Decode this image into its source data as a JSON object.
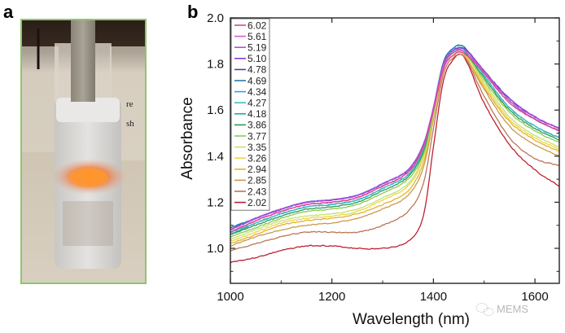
{
  "panels": {
    "a": {
      "label": "a",
      "description": "Glass vial with white powder glowing orange, rod inserted from top"
    },
    "b": {
      "label": "b"
    }
  },
  "watermark": {
    "icon": "wechat-icon",
    "text": "MEMS"
  },
  "chart_data": {
    "type": "line",
    "title": "",
    "xlabel": "Wavelength (nm)",
    "ylabel": "Absorbance",
    "xlim": [
      1000,
      1648
    ],
    "ylim": [
      0.85,
      2.0
    ],
    "xticks": [
      1000,
      1200,
      1400,
      1600
    ],
    "xtick_labels": [
      "1000",
      "1200",
      "1400",
      "1600"
    ],
    "xminor": [
      1100,
      1300,
      1500
    ],
    "yticks": [
      1.0,
      1.2,
      1.4,
      1.6,
      1.8,
      2.0
    ],
    "ytick_labels": [
      "1.0",
      "1.2",
      "1.4",
      "1.6",
      "1.8",
      "2.0"
    ],
    "yminor": [
      0.9,
      1.1,
      1.3,
      1.5,
      1.7,
      1.9
    ],
    "grid": false,
    "legend_position": "top-left",
    "x": [
      1000,
      1050,
      1100,
      1150,
      1200,
      1250,
      1300,
      1350,
      1380,
      1400,
      1420,
      1440,
      1455,
      1470,
      1500,
      1550,
      1600,
      1648
    ],
    "series": [
      {
        "name": "6.02",
        "color": "#e0409a",
        "values": [
          1.07,
          1.12,
          1.16,
          1.19,
          1.2,
          1.22,
          1.27,
          1.33,
          1.44,
          1.6,
          1.78,
          1.84,
          1.85,
          1.83,
          1.76,
          1.63,
          1.56,
          1.51
        ]
      },
      {
        "name": "5.61",
        "color": "#d060c8",
        "values": [
          1.07,
          1.12,
          1.16,
          1.19,
          1.2,
          1.22,
          1.27,
          1.33,
          1.44,
          1.6,
          1.79,
          1.85,
          1.86,
          1.84,
          1.76,
          1.64,
          1.56,
          1.51
        ]
      },
      {
        "name": "5.19",
        "color": "#b050d8",
        "values": [
          1.08,
          1.13,
          1.17,
          1.2,
          1.21,
          1.23,
          1.28,
          1.34,
          1.45,
          1.61,
          1.8,
          1.86,
          1.86,
          1.84,
          1.77,
          1.64,
          1.57,
          1.52
        ]
      },
      {
        "name": "5.10",
        "color": "#8a3ce0",
        "values": [
          1.08,
          1.13,
          1.17,
          1.2,
          1.21,
          1.23,
          1.28,
          1.34,
          1.45,
          1.61,
          1.8,
          1.86,
          1.87,
          1.85,
          1.77,
          1.65,
          1.57,
          1.52
        ]
      },
      {
        "name": "4.78",
        "color": "#5a3aa8",
        "values": [
          1.08,
          1.13,
          1.17,
          1.2,
          1.21,
          1.23,
          1.28,
          1.34,
          1.45,
          1.61,
          1.8,
          1.86,
          1.87,
          1.85,
          1.77,
          1.65,
          1.57,
          1.52
        ]
      },
      {
        "name": "4.69",
        "color": "#2a78a8",
        "values": [
          1.09,
          1.13,
          1.17,
          1.2,
          1.21,
          1.23,
          1.28,
          1.34,
          1.45,
          1.61,
          1.81,
          1.87,
          1.88,
          1.85,
          1.77,
          1.64,
          1.56,
          1.51
        ]
      },
      {
        "name": "4.34",
        "color": "#3aa0d8",
        "values": [
          1.09,
          1.13,
          1.17,
          1.2,
          1.21,
          1.23,
          1.28,
          1.34,
          1.45,
          1.61,
          1.81,
          1.87,
          1.88,
          1.85,
          1.77,
          1.64,
          1.56,
          1.51
        ]
      },
      {
        "name": "4.27",
        "color": "#40b8c8",
        "values": [
          1.07,
          1.11,
          1.15,
          1.18,
          1.19,
          1.21,
          1.26,
          1.32,
          1.43,
          1.6,
          1.8,
          1.86,
          1.87,
          1.84,
          1.75,
          1.61,
          1.53,
          1.48
        ]
      },
      {
        "name": "4.18",
        "color": "#30a898",
        "values": [
          1.06,
          1.11,
          1.15,
          1.18,
          1.19,
          1.21,
          1.26,
          1.32,
          1.43,
          1.6,
          1.8,
          1.86,
          1.86,
          1.84,
          1.75,
          1.61,
          1.53,
          1.48
        ]
      },
      {
        "name": "3.86",
        "color": "#2a9a5a",
        "values": [
          1.06,
          1.1,
          1.14,
          1.17,
          1.18,
          1.2,
          1.25,
          1.31,
          1.42,
          1.6,
          1.8,
          1.85,
          1.86,
          1.83,
          1.74,
          1.6,
          1.52,
          1.47
        ]
      },
      {
        "name": "3.77",
        "color": "#8cc850",
        "values": [
          1.05,
          1.09,
          1.13,
          1.16,
          1.17,
          1.19,
          1.24,
          1.3,
          1.41,
          1.59,
          1.79,
          1.85,
          1.86,
          1.83,
          1.73,
          1.59,
          1.51,
          1.46
        ]
      },
      {
        "name": "3.35",
        "color": "#c8e070",
        "values": [
          1.04,
          1.08,
          1.12,
          1.14,
          1.15,
          1.17,
          1.22,
          1.28,
          1.4,
          1.58,
          1.79,
          1.85,
          1.85,
          1.82,
          1.72,
          1.57,
          1.49,
          1.44
        ]
      },
      {
        "name": "3.26",
        "color": "#e8d848",
        "values": [
          1.03,
          1.07,
          1.11,
          1.13,
          1.14,
          1.16,
          1.21,
          1.27,
          1.39,
          1.58,
          1.79,
          1.84,
          1.85,
          1.82,
          1.71,
          1.56,
          1.48,
          1.43
        ]
      },
      {
        "name": "2.94",
        "color": "#e8b030",
        "values": [
          1.02,
          1.06,
          1.1,
          1.12,
          1.13,
          1.15,
          1.19,
          1.25,
          1.37,
          1.57,
          1.78,
          1.84,
          1.85,
          1.81,
          1.7,
          1.55,
          1.47,
          1.42
        ]
      },
      {
        "name": "2.85",
        "color": "#c89a50",
        "values": [
          1.01,
          1.05,
          1.08,
          1.1,
          1.11,
          1.13,
          1.17,
          1.23,
          1.35,
          1.56,
          1.78,
          1.84,
          1.85,
          1.81,
          1.69,
          1.53,
          1.45,
          1.4
        ]
      },
      {
        "name": "2.43",
        "color": "#b87858",
        "values": [
          0.99,
          1.02,
          1.05,
          1.07,
          1.07,
          1.07,
          1.1,
          1.16,
          1.28,
          1.52,
          1.76,
          1.83,
          1.84,
          1.8,
          1.66,
          1.48,
          1.39,
          1.36
        ]
      },
      {
        "name": "2.02",
        "color": "#c02030",
        "values": [
          0.94,
          0.96,
          0.99,
          1.01,
          1.01,
          1.0,
          1.0,
          1.03,
          1.14,
          1.44,
          1.73,
          1.82,
          1.84,
          1.79,
          1.63,
          1.45,
          1.34,
          1.27
        ]
      }
    ]
  }
}
